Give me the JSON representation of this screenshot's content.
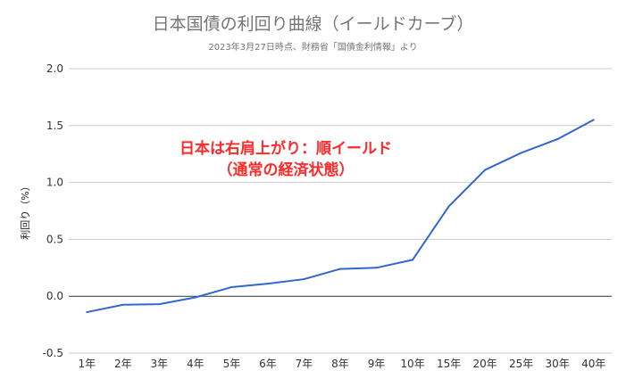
{
  "chart_data": {
    "type": "line",
    "title": "日本国債の利回り曲線（イールドカーブ）",
    "subtitle": "2023年3月27日時点、財務省「国債金利情報」より",
    "xlabel": "",
    "ylabel": "利回り（%）",
    "categories": [
      "1年",
      "2年",
      "3年",
      "4年",
      "5年",
      "6年",
      "7年",
      "8年",
      "9年",
      "10年",
      "15年",
      "20年",
      "25年",
      "30年",
      "40年"
    ],
    "values": [
      -0.14,
      -0.075,
      -0.07,
      -0.01,
      0.08,
      0.11,
      0.15,
      0.24,
      0.25,
      0.32,
      0.79,
      1.11,
      1.26,
      1.38,
      1.55
    ],
    "ylim": [
      -0.5,
      2.0
    ],
    "yticks": [
      "-0.5",
      "0.0",
      "0.5",
      "1.0",
      "1.5",
      "2.0"
    ],
    "grid": true,
    "line_color": "#3366cc",
    "annotation": {
      "line1": "日本は右肩上がり：順イールド",
      "line2": "（通常の経済状態）",
      "color": "#ff2a2a"
    }
  }
}
